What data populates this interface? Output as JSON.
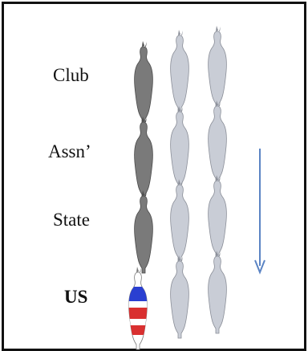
{
  "rows": [
    {
      "label": "Club",
      "bold": false
    },
    {
      "label": "Assn’",
      "bold": false
    },
    {
      "label": "State",
      "bold": false
    },
    {
      "label": "US",
      "bold": true
    }
  ],
  "colors": {
    "frame": "#111111",
    "dark_horse": "#7a7a7a",
    "light_horse": "#c9cdd6",
    "arrow": "#5b84c4",
    "flag_red": "#d93030",
    "flag_blue": "#2a3fd1",
    "flag_white": "#ffffff"
  },
  "icons": {
    "horse": "horse-top-view-icon",
    "arrow": "down-arrow-icon"
  }
}
